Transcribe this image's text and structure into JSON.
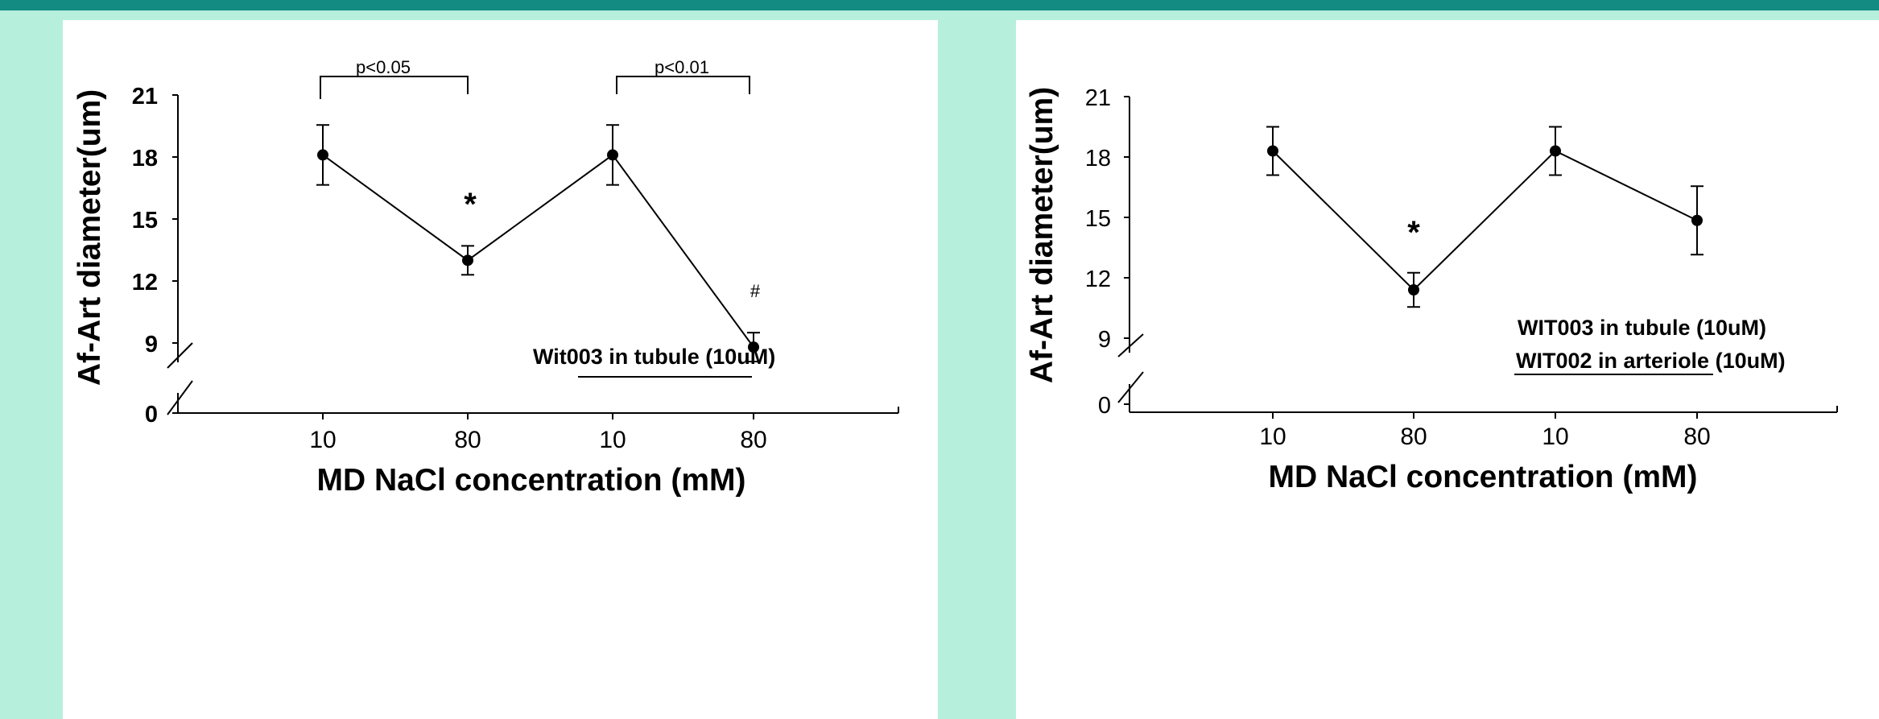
{
  "chart_data": [
    {
      "type": "line",
      "ylabel": "Af-Art diameter(um)",
      "xlabel": "MD NaCl concentration (mM)",
      "categories": [
        "10",
        "80",
        "10",
        "80"
      ],
      "yticks": [
        "21",
        "18",
        "15",
        "12",
        "9",
        "0"
      ],
      "axis_break": true,
      "series": [
        {
          "values": [
            18.1,
            13.0,
            18.1,
            8.8
          ],
          "errors": [
            1.45,
            0.7,
            1.45,
            0.7
          ]
        }
      ],
      "annotations": {
        "condition": [
          "Wit003 in tubule (10uM)"
        ],
        "significance": [
          "p<0.05",
          "p<0.01"
        ],
        "markers": [
          "*",
          "#"
        ]
      }
    },
    {
      "type": "line",
      "ylabel": "Af-Art diameter(um)",
      "xlabel": "MD NaCl concentration (mM)",
      "categories": [
        "10",
        "80",
        "10",
        "80"
      ],
      "yticks": [
        "21",
        "18",
        "15",
        "12",
        "9",
        "0"
      ],
      "axis_break": true,
      "series": [
        {
          "values": [
            18.3,
            11.4,
            18.3,
            14.85
          ],
          "errors": [
            1.2,
            0.85,
            1.2,
            1.7
          ]
        }
      ],
      "annotations": {
        "condition": [
          "WIT003 in tubule (10uM)",
          "WIT002 in arteriole (10uM)"
        ],
        "markers": [
          "*"
        ]
      }
    }
  ]
}
